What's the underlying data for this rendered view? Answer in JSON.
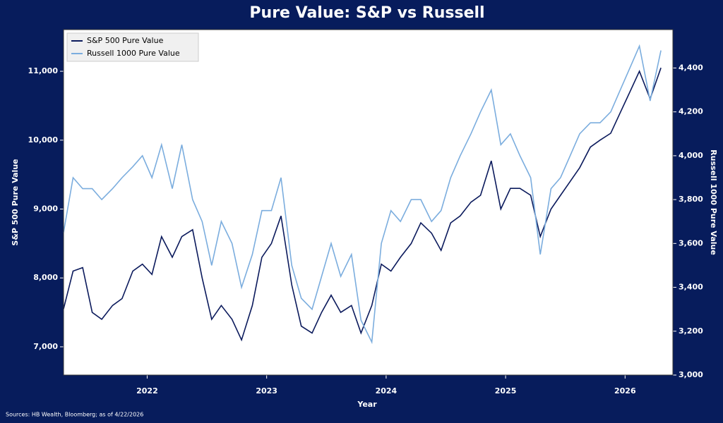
{
  "chart_data": {
    "type": "line",
    "title": "Pure Value: S&P vs Russell",
    "xlabel": "Year",
    "ylabel": "S&P 500 Pure Value",
    "y2label": "Russell 1000 Pure Value",
    "source": "Sources: HB Wealth, Bloomberg; as of 4/22/2026",
    "x": [
      2021.3,
      2021.38,
      2021.46,
      2021.54,
      2021.62,
      2021.71,
      2021.79,
      2021.88,
      2021.96,
      2022.04,
      2022.12,
      2022.21,
      2022.29,
      2022.38,
      2022.46,
      2022.54,
      2022.62,
      2022.71,
      2022.79,
      2022.88,
      2022.96,
      2023.04,
      2023.12,
      2023.21,
      2023.29,
      2023.38,
      2023.46,
      2023.54,
      2023.62,
      2023.71,
      2023.79,
      2023.88,
      2023.96,
      2024.04,
      2024.12,
      2024.21,
      2024.29,
      2024.38,
      2024.46,
      2024.54,
      2024.62,
      2024.71,
      2024.79,
      2024.88,
      2024.96,
      2025.04,
      2025.12,
      2025.21,
      2025.29,
      2025.38,
      2025.46,
      2025.54,
      2025.62,
      2025.71,
      2025.79,
      2025.88,
      2025.96,
      2026.04,
      2026.12,
      2026.21,
      2026.3
    ],
    "series": [
      {
        "name": "S&P 500 Pure Value",
        "color": "#0b1a5c",
        "axis": "y",
        "values": [
          7550,
          8100,
          8150,
          7500,
          7400,
          7600,
          7700,
          8100,
          8200,
          8050,
          8600,
          8300,
          8600,
          8700,
          8000,
          7400,
          7600,
          7400,
          7100,
          7600,
          8300,
          8500,
          8900,
          7900,
          7300,
          7200,
          7500,
          7750,
          7500,
          7600,
          7200,
          7600,
          8200,
          8100,
          8300,
          8500,
          8800,
          8650,
          8400,
          8800,
          8900,
          9100,
          9200,
          9700,
          9000,
          9300,
          9300,
          9200,
          8600,
          9000,
          9200,
          9400,
          9600,
          9900,
          10000,
          10100,
          10400,
          10700,
          11000,
          10600,
          11050
        ]
      },
      {
        "name": "Russell 1000 Pure Value",
        "color": "#7badde",
        "axis": "y2",
        "values": [
          3650,
          3900,
          3850,
          3850,
          3800,
          3850,
          3900,
          3950,
          4000,
          3900,
          4050,
          3850,
          4050,
          3800,
          3700,
          3500,
          3700,
          3600,
          3400,
          3550,
          3750,
          3750,
          3900,
          3500,
          3350,
          3300,
          3450,
          3600,
          3450,
          3550,
          3250,
          3150,
          3600,
          3750,
          3700,
          3800,
          3800,
          3700,
          3750,
          3900,
          4000,
          4100,
          4200,
          4300,
          4050,
          4100,
          4000,
          3900,
          3550,
          3850,
          3900,
          4000,
          4100,
          4150,
          4150,
          4200,
          4300,
          4400,
          4500,
          4250,
          4480
        ]
      }
    ],
    "xlim": [
      2021.3,
      2026.4
    ],
    "xticks": [
      2022,
      2023,
      2024,
      2025,
      2026
    ],
    "ylim": [
      6590,
      11605
    ],
    "yticks": [
      {
        "value": 7000,
        "label": "7,000"
      },
      {
        "value": 8000,
        "label": "8,000"
      },
      {
        "value": 9000,
        "label": "9,000"
      },
      {
        "value": 10000,
        "label": "10,000"
      },
      {
        "value": 11000,
        "label": "11,000"
      }
    ],
    "y2lim": [
      3000,
      4575
    ],
    "y2ticks": [
      {
        "value": 3000,
        "label": "3,000"
      },
      {
        "value": 3200,
        "label": "3,200"
      },
      {
        "value": 3400,
        "label": "3,400"
      },
      {
        "value": 3600,
        "label": "3,600"
      },
      {
        "value": 3800,
        "label": "3,800"
      },
      {
        "value": 4000,
        "label": "4,000"
      },
      {
        "value": 4200,
        "label": "4,200"
      },
      {
        "value": 4400,
        "label": "4,400"
      }
    ],
    "grid": false,
    "legend": "upper-left"
  }
}
